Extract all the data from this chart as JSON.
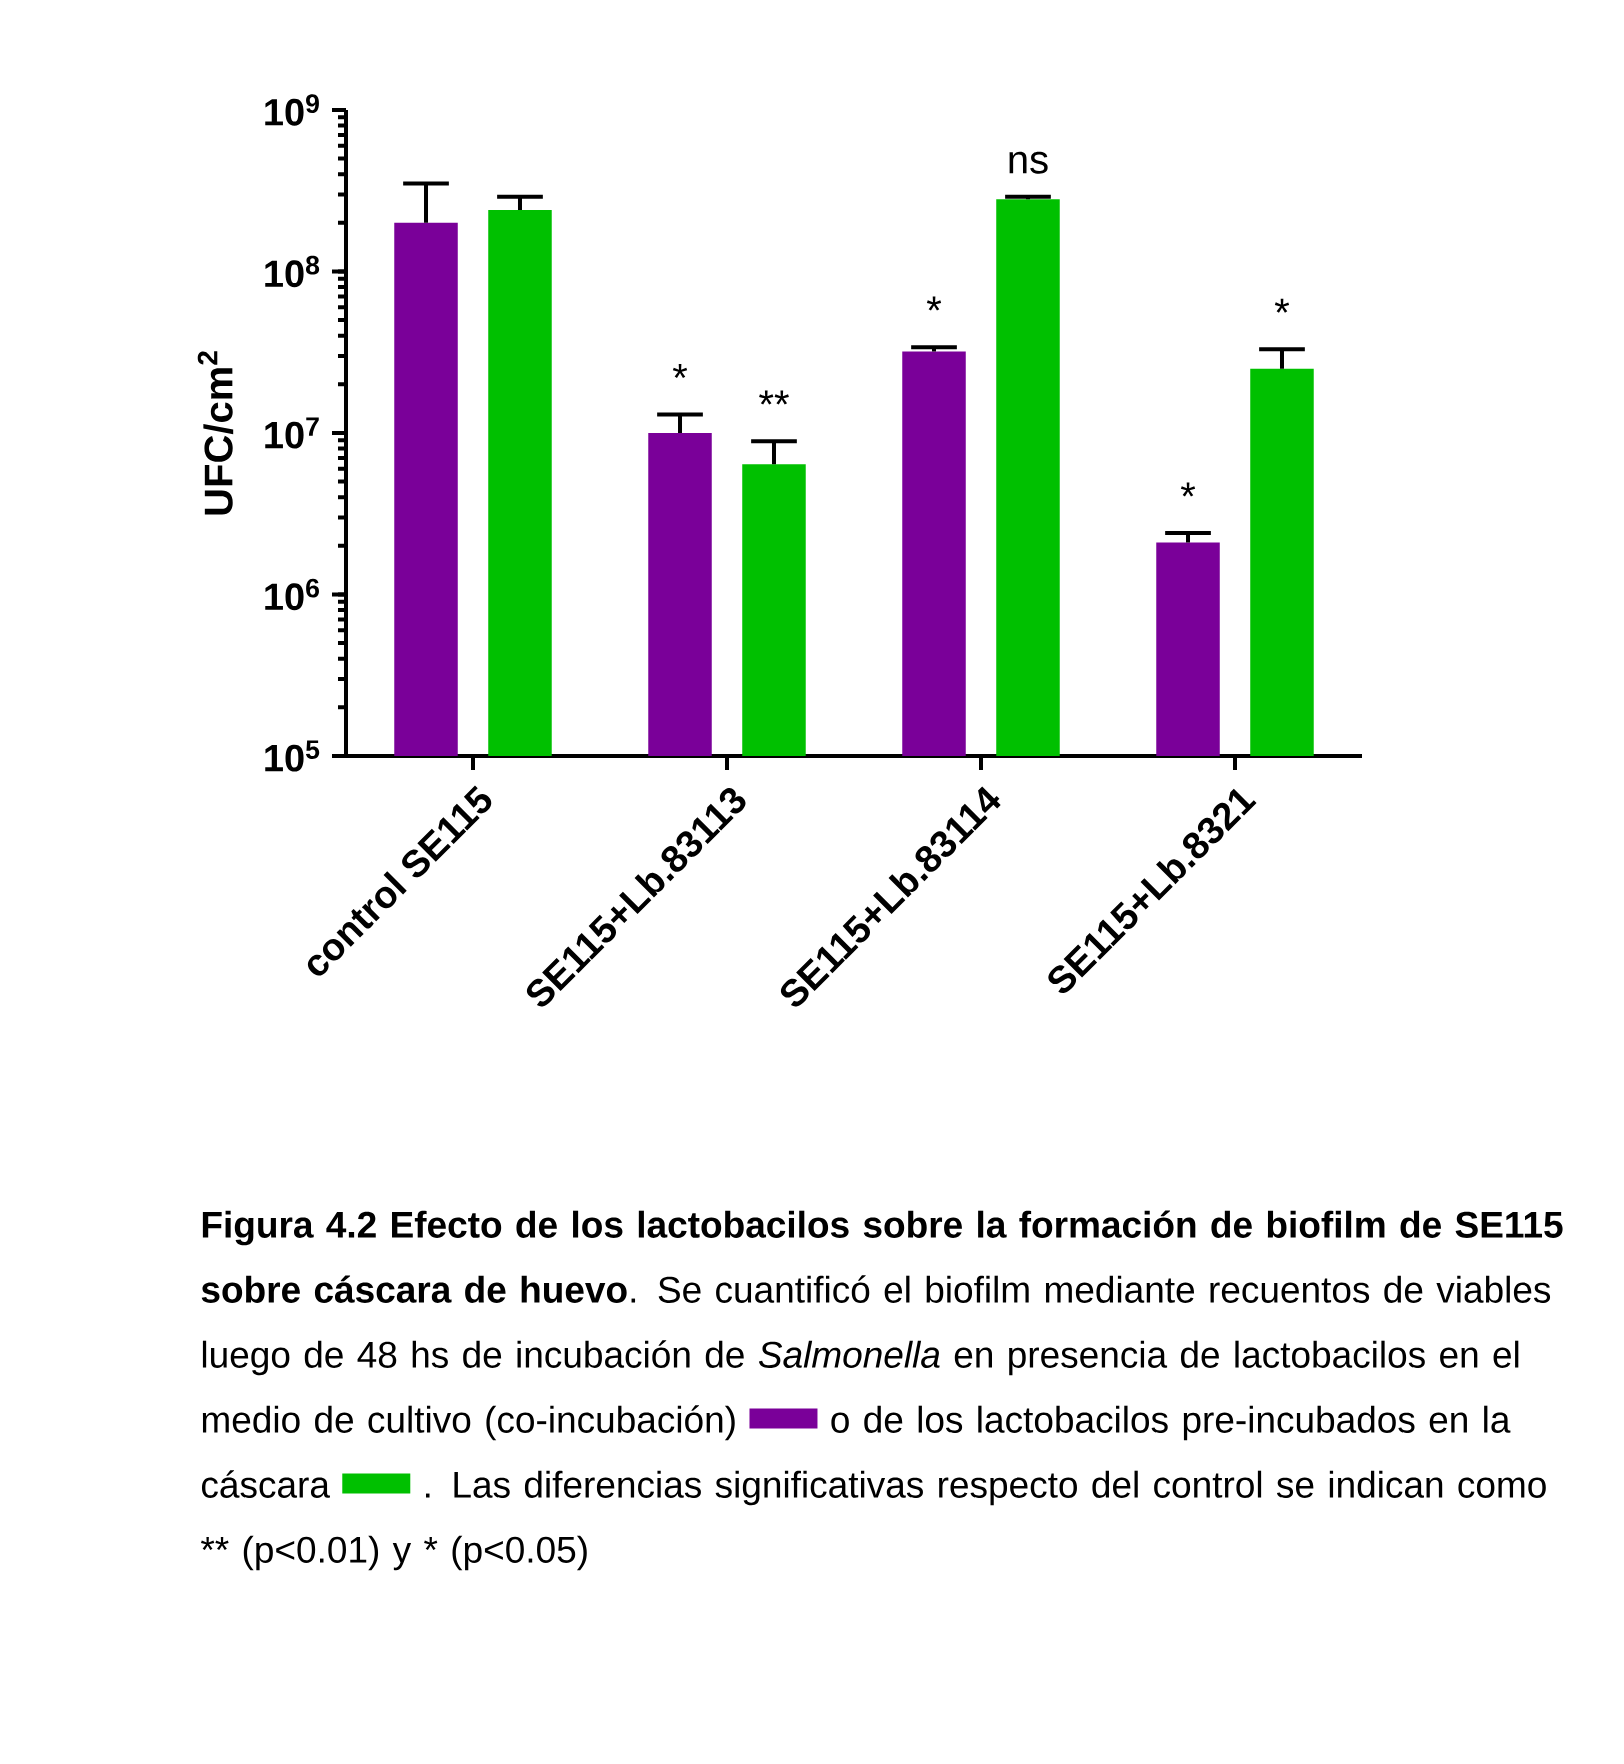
{
  "chart_data": {
    "type": "bar",
    "ylabel": "UFC/cm$^{2}$",
    "log": true,
    "categories": [
      "control SE115",
      "SE115+Lb.83113",
      "SE115+Lb.83114",
      "SE115+Lb.8321"
    ],
    "series": [
      {
        "color": "#7a0099",
        "value_labels": [
          null,
          "*",
          "*",
          "*"
        ],
        "values": [
          200000000,
          10000000,
          32000000,
          2100000
        ],
        "errors": [
          [
            200000000,
            350000000
          ],
          [
            10000000,
            13000000
          ],
          [
            32000000,
            34000000
          ],
          [
            2100000,
            2400000
          ]
        ]
      },
      {
        "color": "#00c000",
        "value_labels": [
          null,
          "**",
          "ns",
          "*"
        ],
        "values": [
          240000000,
          6400000,
          280000000,
          25000000
        ],
        "errors": [
          [
            240000000,
            290000000
          ],
          [
            6400000,
            8900000
          ],
          [
            280000000,
            290000000
          ],
          [
            25000000,
            33000000
          ]
        ]
      }
    ],
    "ylim": [
      100000,
      1000000000
    ],
    "yticks": [
      {
        "value": 100000,
        "label": "10$^{5}$"
      },
      {
        "value": 1000000,
        "label": "10$^{6}$"
      },
      {
        "value": 10000000,
        "label": "10$^{7}$"
      },
      {
        "value": 100000000,
        "label": "10$^{8}$"
      },
      {
        "value": 1000000000,
        "label": "10$^{9}$"
      }
    ],
    "grid": false,
    "annotations": [
      "**Figura 4.2 Efecto de los lactobacilos sobre la formación de biofilm de SE115 sobre cáscara de huevo**. Se cuantificó el biofilm mediante recuentos de viables luego de 48 hs de incubación de *Salmonella* en presencia de lactobacilos en el medio de cultivo (co-incubación)",
      "o de los lactobacilos pre-incubados en la cáscara",
      ". Las diferencias significativas respecto del control se indican como ** (p<0.01) y * (p<0.05)"
    ]
  }
}
